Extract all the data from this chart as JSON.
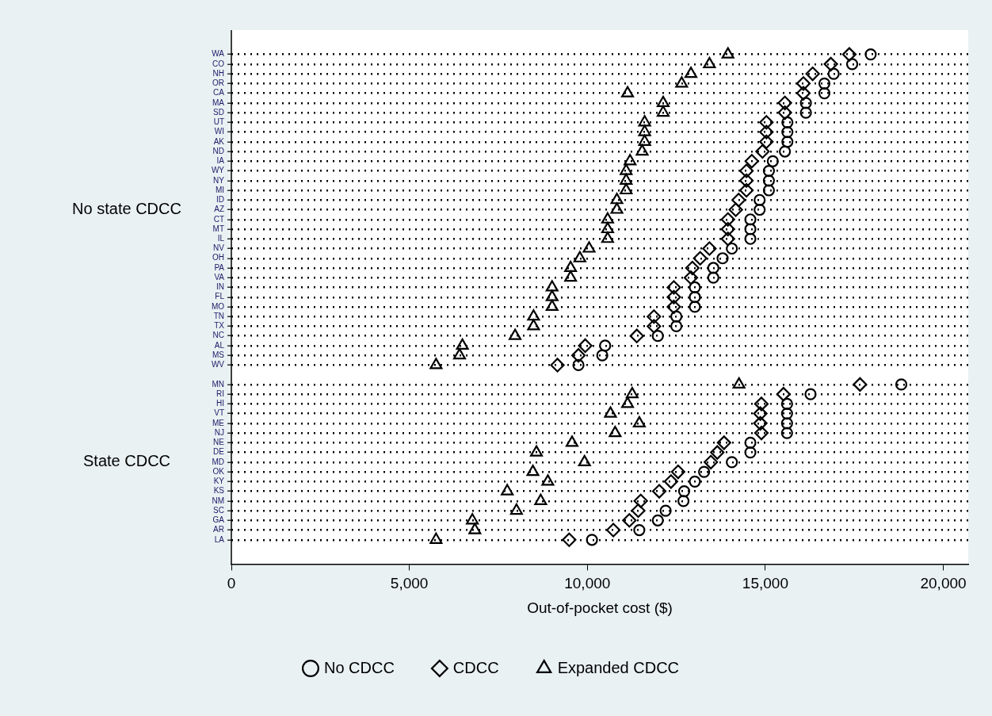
{
  "chart_data": {
    "type": "scatter",
    "orientation": "horizontal",
    "categories": [
      "WA",
      "CO",
      "NH",
      "OR",
      "CA",
      "MA",
      "SD",
      "UT",
      "WI",
      "AK",
      "ND",
      "IA",
      "WY",
      "NY",
      "MI",
      "ID",
      "AZ",
      "CT",
      "MT",
      "IL",
      "NV",
      "OH",
      "PA",
      "VA",
      "IN",
      "FL",
      "MO",
      "TN",
      "TX",
      "NC",
      "AL",
      "MS",
      "WV",
      null,
      "MN",
      "RI",
      "HI",
      "VT",
      "ME",
      "NJ",
      "NE",
      "DE",
      "MD",
      "OK",
      "KY",
      "KS",
      "NM",
      "SC",
      "GA",
      "AR",
      "LA"
    ],
    "series": [
      {
        "name": "No CDCC",
        "color": "#000000",
        "marker": "circle",
        "values": [
          17960,
          17440,
          16920,
          16660,
          16660,
          16140,
          16140,
          15620,
          15620,
          15620,
          15550,
          15210,
          15100,
          15100,
          15100,
          14840,
          14840,
          14580,
          14580,
          14580,
          14060,
          13800,
          13540,
          13540,
          13020,
          13020,
          13020,
          12500,
          12500,
          11980,
          10500,
          10420,
          9750,
          null,
          18820,
          16270,
          15610,
          15610,
          15610,
          15610,
          14580,
          14580,
          14060,
          13280,
          13020,
          12720,
          12700,
          12200,
          11980,
          11460,
          10130
        ]
      },
      {
        "name": "CDCC",
        "color": "#000000",
        "marker": "diamond",
        "values": [
          17360,
          16840,
          16330,
          16070,
          16070,
          15550,
          15550,
          15030,
          15030,
          15030,
          14920,
          14620,
          14470,
          14470,
          14470,
          14250,
          14170,
          13950,
          13950,
          13950,
          13430,
          13170,
          12950,
          12910,
          12430,
          12430,
          12430,
          11870,
          11870,
          11390,
          9940,
          9750,
          9160,
          null,
          17660,
          15510,
          14890,
          14860,
          14860,
          14890,
          13840,
          13650,
          13470,
          12550,
          12350,
          12020,
          11500,
          11430,
          11180,
          10730,
          9490
        ]
      },
      {
        "name": "Expanded CDCC",
        "color": "#000000",
        "marker": "triangle",
        "values": [
          13950,
          13430,
          12910,
          12650,
          11130,
          12130,
          12130,
          11610,
          11610,
          11610,
          11540,
          11200,
          11090,
          11090,
          11090,
          10830,
          10830,
          10570,
          10570,
          10570,
          10050,
          9790,
          9530,
          9530,
          9010,
          9010,
          9010,
          8490,
          8490,
          7970,
          6490,
          6410,
          5750,
          null,
          14260,
          11260,
          11130,
          10650,
          11460,
          10780,
          9570,
          8570,
          9920,
          8470,
          8890,
          7750,
          8690,
          8010,
          6770,
          6840,
          5750
        ]
      }
    ],
    "xlabel": "Out-of-pocket cost ($)",
    "xlim": [
      0,
      20700
    ],
    "xticks": [
      0,
      {
        "value": 5000,
        "label": "5,000"
      },
      {
        "value": 10000,
        "label": "10,000"
      },
      {
        "value": 15000,
        "label": "15,000"
      },
      {
        "value": 20000,
        "label": "20,000"
      }
    ],
    "annotations": [
      "No state CDCC",
      "State CDCC"
    ],
    "grid": "y",
    "legend": "bottom"
  }
}
